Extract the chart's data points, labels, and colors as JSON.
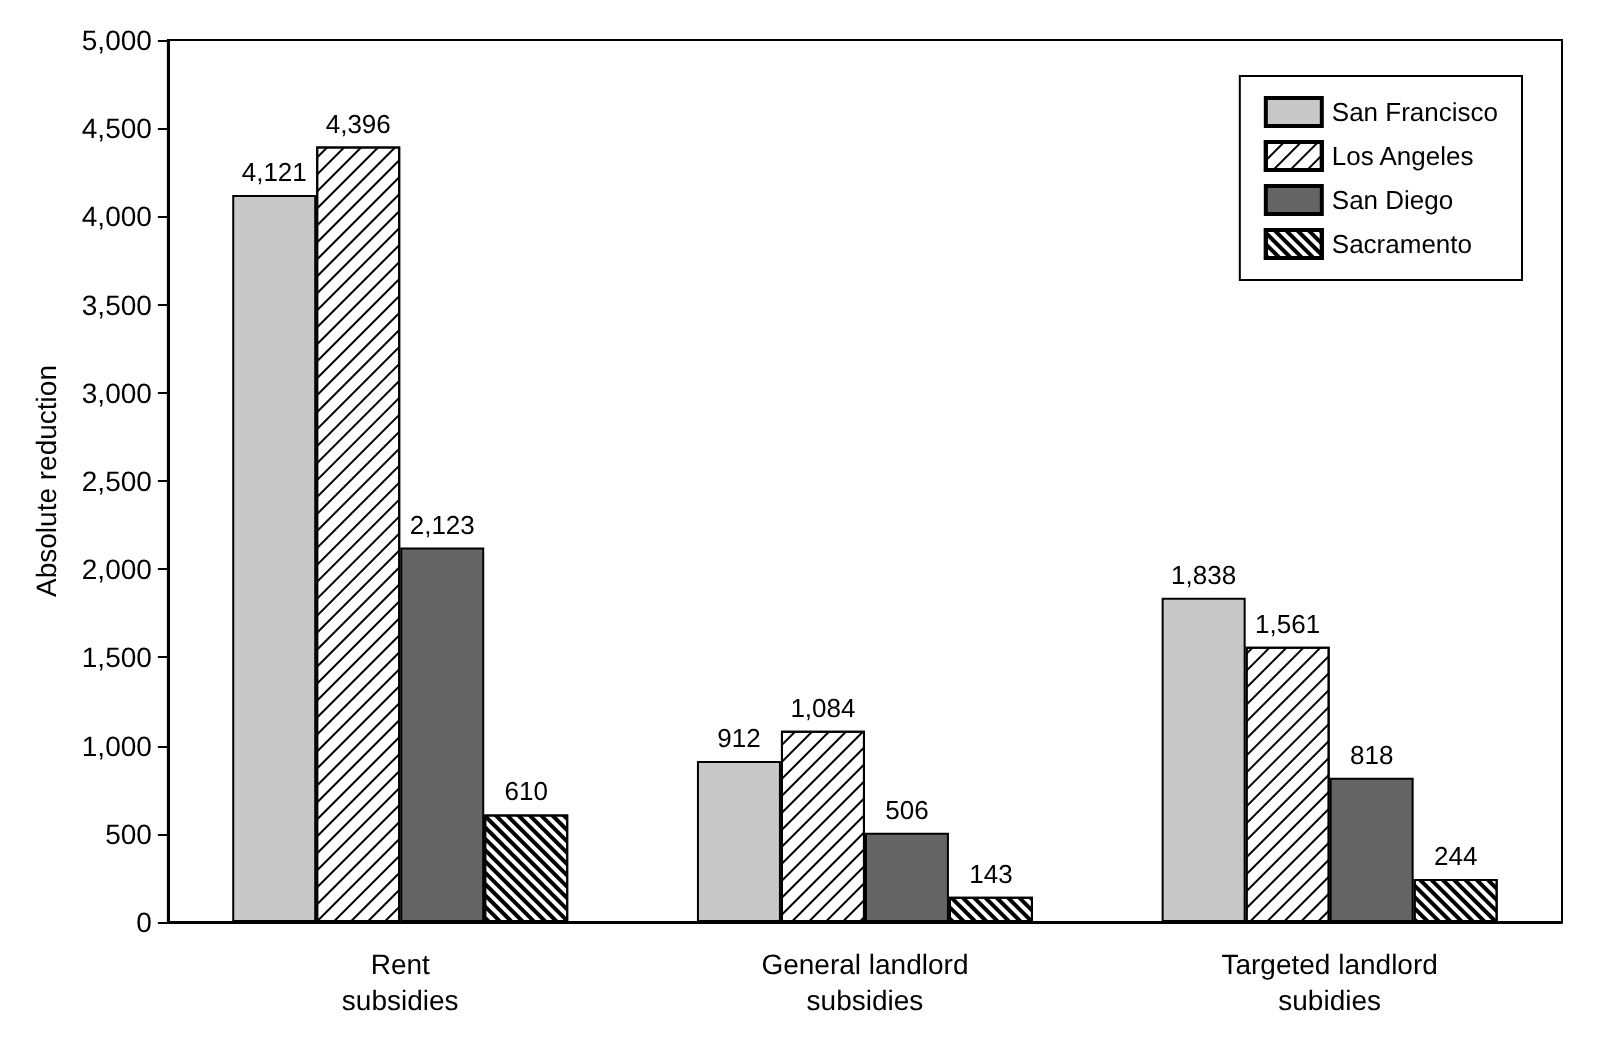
{
  "chart_data": {
    "type": "bar",
    "ylabel": "Absolute reduction",
    "categories": [
      "Rent\nsubsidies",
      "General landlord\nsubsidies",
      "Targeted landlord\nsubidies"
    ],
    "series": [
      {
        "name": "San Francisco",
        "color": "#c8c8c8",
        "values": [
          4121,
          912,
          1838
        ],
        "value_labels": [
          "4,121",
          "912",
          "1,838"
        ]
      },
      {
        "name": "Los Angeles",
        "color": "#ffffff",
        "values": [
          4396,
          1084,
          1561
        ],
        "value_labels": [
          "4,396",
          "1,084",
          "1,561"
        ]
      },
      {
        "name": "San Diego",
        "color": "#646464",
        "values": [
          2123,
          506,
          818
        ],
        "value_labels": [
          "2,123",
          "506",
          "818"
        ]
      },
      {
        "name": "Sacramento",
        "color": "#ffffff",
        "values": [
          610,
          143,
          244
        ],
        "value_labels": [
          "610",
          "143",
          "244"
        ]
      }
    ],
    "ylim": [
      0,
      5000
    ],
    "yticks": [
      0,
      500,
      {
        "value": 1000,
        "label": "1,000"
      },
      {
        "value": 1500,
        "label": "1,500"
      },
      {
        "value": 2000,
        "label": "2,000"
      },
      {
        "value": 2500,
        "label": "2,500"
      },
      {
        "value": 3000,
        "label": "3,000"
      },
      {
        "value": 3500,
        "label": "3,500"
      },
      {
        "value": 4000,
        "label": "4,000"
      },
      {
        "value": 4500,
        "label": "4,500"
      },
      {
        "value": 5000,
        "label": "5,000"
      }
    ],
    "grid": false,
    "legend": "top right"
  }
}
